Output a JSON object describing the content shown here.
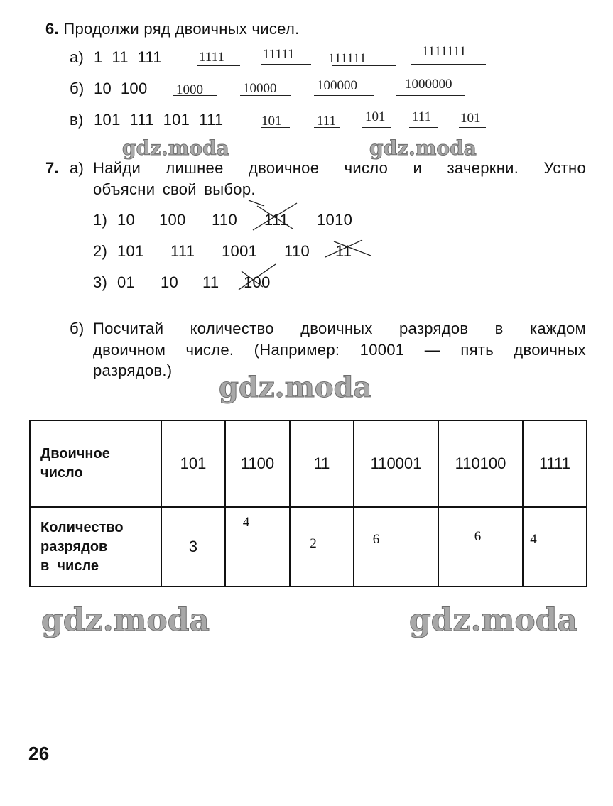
{
  "task6": {
    "number": "6.",
    "title": "Продолжи ряд двоичных чисел.",
    "rows": [
      {
        "label": "а)",
        "given": "1  11  111",
        "answers": [
          "1111",
          "11111",
          "111111",
          "1111111"
        ]
      },
      {
        "label": "б)",
        "given": "10  100",
        "answers": [
          "1000",
          "10000",
          "100000",
          "1000000"
        ]
      },
      {
        "label": "в)",
        "given": "101  111  101  111",
        "answers": [
          "101",
          "111",
          "101",
          "111",
          "101"
        ]
      }
    ]
  },
  "task7": {
    "number": "7.",
    "part_a": {
      "label": "а)",
      "line1": "Найди лишнее двоичное число и зачеркни. Устно",
      "line2": "объясни свой выбор.",
      "items": [
        {
          "label": "1)",
          "numbers": [
            "10",
            "100",
            "110",
            "111",
            "1010"
          ],
          "crossed_index": 3
        },
        {
          "label": "2)",
          "numbers": [
            "101",
            "111",
            "1001",
            "110",
            "11"
          ],
          "crossed_index": 4
        },
        {
          "label": "3)",
          "numbers": [
            "01",
            "10",
            "11",
            "100"
          ],
          "crossed_index": 3
        }
      ]
    },
    "part_b": {
      "label": "б)",
      "line1": "Посчитай количество двоичных разрядов в каждом",
      "line2": "двоичном числе. (Например: 10001 — пять двоичных",
      "line3": "разрядов.)"
    },
    "table": {
      "row1_header": [
        "Двоичное",
        "число"
      ],
      "row2_header": [
        "Количество",
        "разрядов",
        "в  числе"
      ],
      "numbers": [
        "101",
        "1100",
        "11",
        "110001",
        "110100",
        "1111"
      ],
      "counts": [
        "3",
        "4",
        "2",
        "6",
        "6",
        "4"
      ]
    }
  },
  "watermark": "gdz.moda",
  "page_number": "26"
}
